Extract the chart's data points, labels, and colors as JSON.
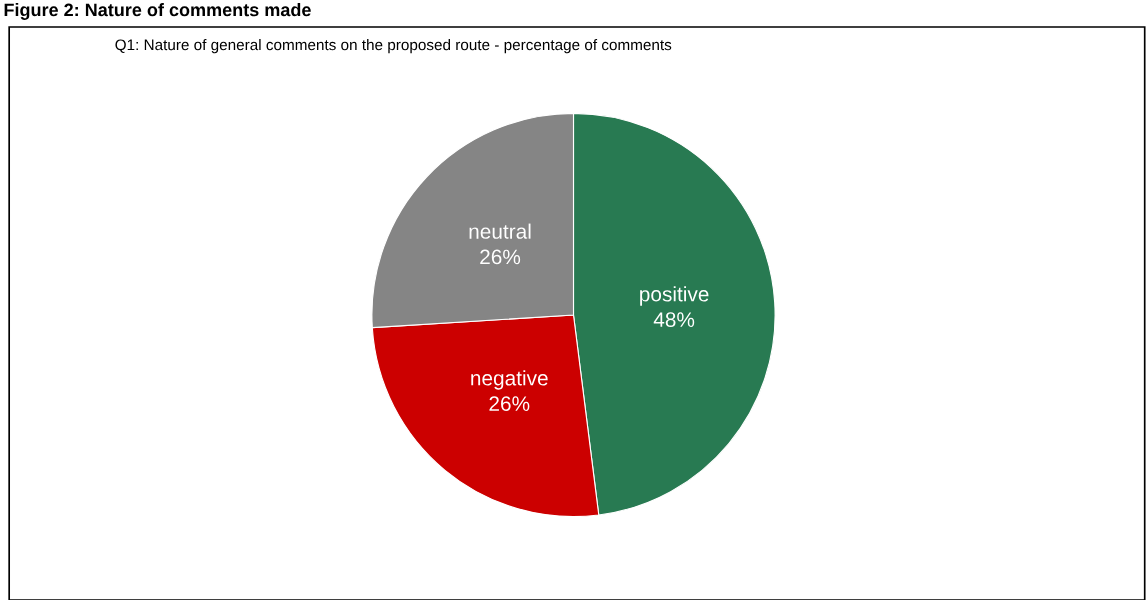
{
  "chart_data": {
    "type": "pie",
    "title": "Figure 2: Nature of comments made",
    "subtitle": "Q1: Nature of general comments on the proposed route - percentage of comments",
    "categories": [
      "positive",
      "negative",
      "neutral"
    ],
    "values": [
      48,
      26,
      26
    ],
    "value_labels": [
      "48%",
      "26%",
      "26%"
    ],
    "colors": [
      "#287a52",
      "#cc0000",
      "#858585"
    ],
    "legend": false
  }
}
